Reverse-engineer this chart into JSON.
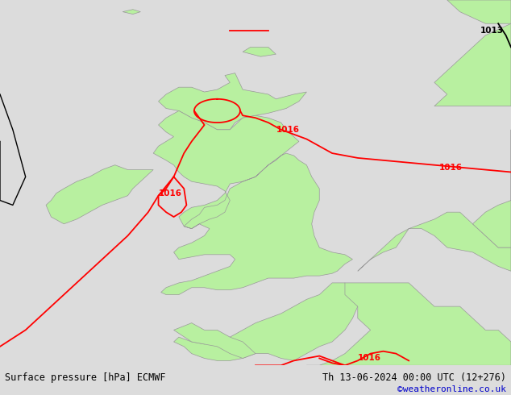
{
  "title_left": "Surface pressure [hPa] ECMWF",
  "title_right": "Th 13-06-2024 00:00 UTC (12+276)",
  "copyright": "©weatheronline.co.uk",
  "background_color": "#dcdcdc",
  "land_color": "#b8f0a0",
  "border_color": "#999999",
  "sea_color": "#dcdcdc",
  "contour_color": "#ff0000",
  "contour_label_color": "#ff0000",
  "black_contour_color": "#000000",
  "fig_width": 6.34,
  "fig_height": 4.9,
  "dpi": 100,
  "map_lon_min": -12.0,
  "map_lon_max": 8.0,
  "map_lat_min": 47.0,
  "map_lat_max": 62.5,
  "title_fontsize": 8.5,
  "copyright_fontsize": 8,
  "label_fontsize": 7.5
}
